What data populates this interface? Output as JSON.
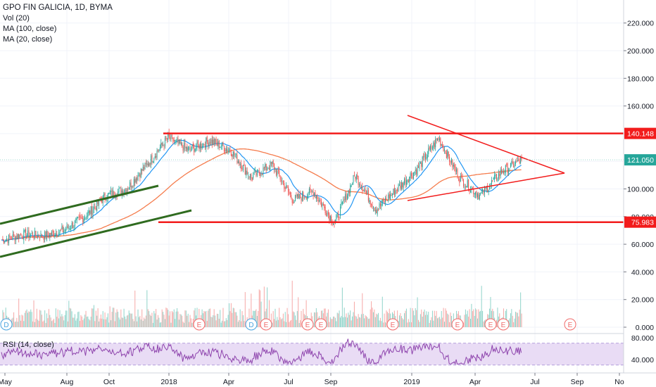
{
  "legend": {
    "title": "GPO FIN GALICIA, 1D, BYMA",
    "vol": "Vol (20)",
    "ma100": "MA (100, close)",
    "ma20": "MA (20, close)"
  },
  "rsi": {
    "label": "RSI (14, close)"
  },
  "price_axis": {
    "ticks": [
      "220.000",
      "200.000",
      "180.000",
      "160.000",
      "100.000",
      "80.000",
      "60.000",
      "40.000",
      "20.000",
      "0.000"
    ],
    "tick_values": [
      220,
      200,
      180,
      160,
      100,
      80,
      60,
      40,
      20,
      0
    ],
    "price_tags": [
      {
        "label": "140.148",
        "value": 140.148,
        "color": "#f21c1c"
      },
      {
        "label": "121.050",
        "value": 121.05,
        "color": "#26a69a"
      },
      {
        "label": "75.983",
        "value": 75.983,
        "color": "#f21c1c"
      }
    ]
  },
  "rsi_axis": {
    "ticks": [
      "80.000",
      "40.000"
    ],
    "tick_values": [
      80,
      40
    ]
  },
  "time_axis": {
    "labels": [
      "May",
      "Aug",
      "Oct",
      "2018",
      "Apr",
      "Jul",
      "Sep",
      "2019",
      "Apr",
      "Jul",
      "Sep",
      "No"
    ]
  },
  "event_markers": [
    {
      "label": "D"
    },
    {
      "label": "E"
    },
    {
      "label": "D"
    },
    {
      "label": "E"
    },
    {
      "label": "E"
    },
    {
      "label": "E"
    },
    {
      "label": "E"
    },
    {
      "label": "E"
    },
    {
      "label": "E"
    },
    {
      "label": "E"
    },
    {
      "label": "E"
    }
  ],
  "colors": {
    "up": "#26a69a",
    "down": "#ef5350",
    "ma20": "#2196f3",
    "ma100": "#f57c4d",
    "drawing_red": "#f21c1c",
    "drawing_green": "#2f6b1f",
    "rsi_line": "#8e44ad",
    "rsi_band": "#e9dcf5",
    "event": "#f06a6a",
    "dividend": "#4aa3df"
  },
  "chart_data": {
    "type": "candlestick",
    "title": "GPO FIN GALICIA, 1D, BYMA",
    "period": {
      "from": "2017-05",
      "to": "2019-06"
    },
    "x_tick_labels": [
      "May",
      "Aug",
      "Oct",
      "2018",
      "Apr",
      "Jul",
      "Sep",
      "2019",
      "Apr",
      "Jul",
      "Sep",
      "No"
    ],
    "price_ylim": [
      0,
      230
    ],
    "close_path": [
      {
        "date": "2017-05",
        "close": 63
      },
      {
        "date": "2017-06",
        "close": 67
      },
      {
        "date": "2017-07",
        "close": 66
      },
      {
        "date": "2017-08",
        "close": 70
      },
      {
        "date": "2017-09",
        "close": 80
      },
      {
        "date": "2017-10",
        "close": 95
      },
      {
        "date": "2017-11",
        "close": 100
      },
      {
        "date": "2017-12",
        "close": 118
      },
      {
        "date": "2018-01",
        "close": 137
      },
      {
        "date": "2018-02",
        "close": 128
      },
      {
        "date": "2018-03",
        "close": 135
      },
      {
        "date": "2018-04",
        "close": 128
      },
      {
        "date": "2018-05",
        "close": 108
      },
      {
        "date": "2018-06",
        "close": 118
      },
      {
        "date": "2018-07",
        "close": 92
      },
      {
        "date": "2018-08",
        "close": 98
      },
      {
        "date": "2018-09",
        "close": 75
      },
      {
        "date": "2018-10",
        "close": 110
      },
      {
        "date": "2018-11",
        "close": 85
      },
      {
        "date": "2018-12",
        "close": 100
      },
      {
        "date": "2019-01",
        "close": 115
      },
      {
        "date": "2019-02",
        "close": 137
      },
      {
        "date": "2019-03",
        "close": 108
      },
      {
        "date": "2019-04",
        "close": 95
      },
      {
        "date": "2019-05",
        "close": 112
      },
      {
        "date": "2019-06",
        "close": 121
      }
    ],
    "last_price": 121.05,
    "horizontal_levels": [
      140.148,
      75.983
    ],
    "indicators": [
      "Vol (20)",
      "MA (100, close)",
      "MA (20, close)",
      "RSI (14, close)"
    ],
    "rsi_ylim": [
      25,
      90
    ],
    "rsi_band": [
      30,
      70
    ]
  }
}
